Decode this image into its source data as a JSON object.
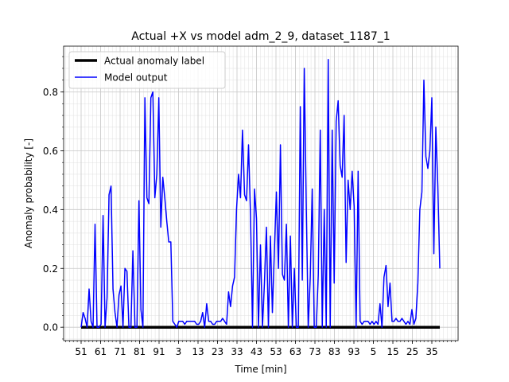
{
  "chart_data": {
    "type": "line",
    "title": "Actual +X vs model adm_2_9, dataset_1187_1",
    "xlabel": "Time [min]",
    "ylabel": "Anomaly probability [-]",
    "x_tick_labels": [
      "51",
      "61",
      "71",
      "81",
      "91",
      "3",
      "13",
      "23",
      "33",
      "43",
      "53",
      "63",
      "73",
      "83",
      "93",
      "5",
      "15",
      "25",
      "35"
    ],
    "ylim": [
      -0.0455,
      0.9555
    ],
    "yticks": [
      0.0,
      0.2,
      0.4,
      0.6,
      0.8
    ],
    "ytick_labels": [
      "0.0",
      "0.2",
      "0.4",
      "0.6",
      "0.8"
    ],
    "grid": true,
    "legend_position": "upper-left",
    "series": [
      {
        "name": "Actual anomaly label",
        "color": "#000000",
        "values": [
          0,
          0
        ]
      },
      {
        "name": "Model output",
        "color": "#0000ff",
        "values": [
          0.0,
          0.05,
          0.03,
          0.0,
          0.13,
          0.02,
          0.0,
          0.35,
          0.0,
          0.0,
          0.01,
          0.38,
          0.0,
          0.1,
          0.45,
          0.48,
          0.13,
          0.05,
          0.0,
          0.11,
          0.14,
          0.0,
          0.2,
          0.19,
          0.0,
          0.0,
          0.26,
          0.0,
          0.0,
          0.43,
          0.06,
          0.0,
          0.78,
          0.44,
          0.42,
          0.78,
          0.8,
          0.44,
          0.52,
          0.78,
          0.34,
          0.51,
          0.44,
          0.36,
          0.29,
          0.29,
          0.02,
          0.01,
          0.0,
          0.02,
          0.02,
          0.02,
          0.01,
          0.02,
          0.02,
          0.02,
          0.02,
          0.02,
          0.01,
          0.01,
          0.02,
          0.05,
          0.0,
          0.08,
          0.02,
          0.02,
          0.01,
          0.01,
          0.02,
          0.02,
          0.02,
          0.03,
          0.02,
          0.01,
          0.12,
          0.07,
          0.14,
          0.17,
          0.4,
          0.52,
          0.44,
          0.67,
          0.45,
          0.43,
          0.62,
          0.38,
          0.0,
          0.47,
          0.37,
          0.0,
          0.28,
          0.0,
          0.15,
          0.34,
          0.0,
          0.31,
          0.05,
          0.26,
          0.46,
          0.2,
          0.62,
          0.18,
          0.16,
          0.35,
          0.0,
          0.31,
          0.0,
          0.2,
          0.0,
          0.0,
          0.75,
          0.16,
          0.88,
          0.41,
          0.0,
          0.17,
          0.47,
          0.0,
          0.0,
          0.18,
          0.67,
          0.0,
          0.4,
          0.0,
          0.91,
          0.0,
          0.67,
          0.15,
          0.7,
          0.77,
          0.55,
          0.51,
          0.72,
          0.22,
          0.5,
          0.4,
          0.53,
          0.41,
          0.0,
          0.53,
          0.02,
          0.01,
          0.02,
          0.02,
          0.02,
          0.01,
          0.02,
          0.01,
          0.02,
          0.01,
          0.08,
          0.0,
          0.17,
          0.21,
          0.07,
          0.15,
          0.02,
          0.02,
          0.03,
          0.02,
          0.02,
          0.03,
          0.02,
          0.01,
          0.02,
          0.01,
          0.06,
          0.01,
          0.03,
          0.15,
          0.4,
          0.46,
          0.84,
          0.58,
          0.54,
          0.6,
          0.78,
          0.25,
          0.68,
          0.48,
          0.2
        ]
      }
    ]
  }
}
